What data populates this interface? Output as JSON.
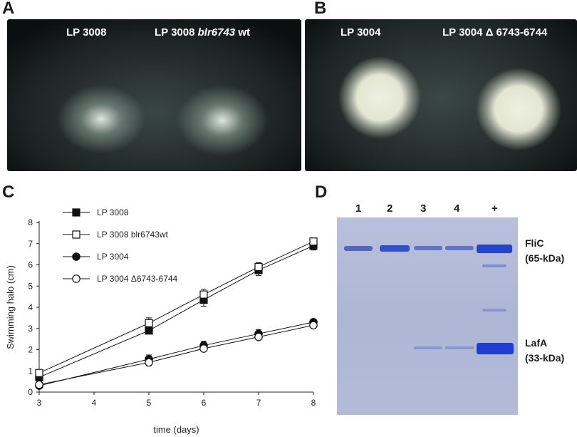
{
  "panels": {
    "a": {
      "letter": "A",
      "left_label": "LP 3008",
      "right_label_prefix": "LP 3008 ",
      "right_label_gene": "blr6743",
      "right_label_suffix": " wt"
    },
    "b": {
      "letter": "B",
      "left_label": "LP 3004",
      "right_label": "LP 3004 Δ 6743-6744"
    },
    "c": {
      "letter": "C"
    },
    "d": {
      "letter": "D",
      "lanes": [
        "1",
        "2",
        "3",
        "4",
        "+"
      ],
      "band_labels": [
        {
          "name": "FliC",
          "size": "(65-kDa)"
        },
        {
          "name": "LafA",
          "size": "(33-kDa)"
        }
      ]
    }
  },
  "chart_data": {
    "type": "line",
    "xlabel": "time (days)",
    "ylabel": "Swimming halo (cm)",
    "xlim": [
      3,
      8
    ],
    "ylim": [
      0,
      8
    ],
    "xticks": [
      3,
      4,
      5,
      6,
      7,
      8
    ],
    "yticks": [
      0,
      1,
      2,
      3,
      4,
      5,
      6,
      7,
      8
    ],
    "grid": false,
    "legend_position": "top-left",
    "x": [
      3,
      5,
      6,
      7,
      8
    ],
    "series": [
      {
        "name": "LP 3008",
        "marker": "square",
        "fill": "filled",
        "values": [
          0.7,
          2.9,
          4.35,
          5.75,
          6.9
        ],
        "errors": [
          0.15,
          0.15,
          0.3,
          0.25,
          0.2
        ]
      },
      {
        "name": "LP 3008 blr6743wt",
        "marker": "square",
        "fill": "open",
        "values": [
          0.9,
          3.25,
          4.6,
          5.9,
          7.1
        ],
        "errors": [
          0.1,
          0.25,
          0.25,
          0.2,
          0.1
        ]
      },
      {
        "name": "LP 3004",
        "marker": "circle",
        "fill": "filled",
        "values": [
          0.3,
          1.55,
          2.2,
          2.75,
          3.3
        ],
        "errors": [
          0.05,
          0.2,
          0.2,
          0.2,
          0.05
        ]
      },
      {
        "name": "LP 3004 Δ6743-6744",
        "marker": "circle",
        "fill": "open",
        "values": [
          0.35,
          1.4,
          2.05,
          2.6,
          3.15
        ],
        "errors": [
          0.05,
          0.15,
          0.1,
          0.1,
          0.05
        ]
      }
    ]
  }
}
